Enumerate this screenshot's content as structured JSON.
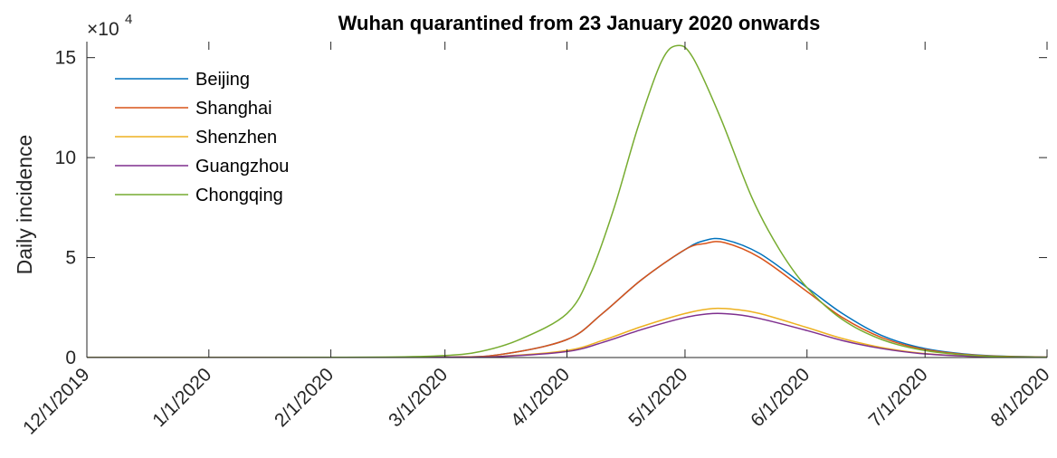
{
  "chart_data": {
    "type": "line",
    "title": "Wuhan quarantined from 23 January 2020 onwards",
    "xlabel": "",
    "ylabel": "Daily incidence",
    "y_multiplier_label": "×10",
    "y_multiplier_exponent": "4",
    "x_ticks": [
      "12/1/2019",
      "1/1/2020",
      "2/1/2020",
      "3/1/2020",
      "4/1/2020",
      "5/1/2020",
      "6/1/2020",
      "7/1/2020",
      "8/1/2020"
    ],
    "y_ticks": [
      "0",
      "5",
      "10",
      "15"
    ],
    "ylim": [
      0,
      15.8
    ],
    "y_unit_scale": 10000,
    "legend_position": "top-left",
    "grid": false,
    "series": [
      {
        "name": "Beijing",
        "color": "#0072BD",
        "x": [
          "2020-02-01",
          "2020-03-01",
          "2020-03-15",
          "2020-04-01",
          "2020-04-10",
          "2020-04-20",
          "2020-05-01",
          "2020-05-06",
          "2020-05-11",
          "2020-05-20",
          "2020-06-01",
          "2020-06-10",
          "2020-06-20",
          "2020-07-01",
          "2020-07-15",
          "2020-08-01"
        ],
        "y": [
          0,
          0.02,
          0.15,
          0.9,
          2.2,
          3.9,
          5.4,
          5.85,
          5.9,
          5.2,
          3.5,
          2.2,
          1.1,
          0.45,
          0.12,
          0.02
        ]
      },
      {
        "name": "Shanghai",
        "color": "#D95319",
        "x": [
          "2020-02-01",
          "2020-03-01",
          "2020-03-15",
          "2020-04-01",
          "2020-04-10",
          "2020-04-20",
          "2020-05-01",
          "2020-05-06",
          "2020-05-11",
          "2020-05-20",
          "2020-06-01",
          "2020-06-10",
          "2020-06-20",
          "2020-07-01",
          "2020-07-15",
          "2020-08-01"
        ],
        "y": [
          0,
          0.02,
          0.15,
          0.9,
          2.2,
          3.9,
          5.4,
          5.7,
          5.75,
          5.0,
          3.3,
          2.0,
          1.0,
          0.4,
          0.1,
          0.02
        ]
      },
      {
        "name": "Shenzhen",
        "color": "#EDB120",
        "x": [
          "2020-02-01",
          "2020-03-01",
          "2020-03-15",
          "2020-04-01",
          "2020-04-10",
          "2020-04-20",
          "2020-05-01",
          "2020-05-08",
          "2020-05-14",
          "2020-05-20",
          "2020-06-01",
          "2020-06-10",
          "2020-06-20",
          "2020-07-01",
          "2020-07-15",
          "2020-08-01"
        ],
        "y": [
          0,
          0.01,
          0.06,
          0.35,
          0.85,
          1.55,
          2.2,
          2.45,
          2.4,
          2.2,
          1.5,
          0.95,
          0.5,
          0.2,
          0.05,
          0.01
        ]
      },
      {
        "name": "Guangzhou",
        "color": "#7E2F8E",
        "x": [
          "2020-02-01",
          "2020-03-01",
          "2020-03-15",
          "2020-04-01",
          "2020-04-10",
          "2020-04-20",
          "2020-05-01",
          "2020-05-08",
          "2020-05-14",
          "2020-05-20",
          "2020-06-01",
          "2020-06-10",
          "2020-06-20",
          "2020-07-01",
          "2020-07-15",
          "2020-08-01"
        ],
        "y": [
          0,
          0.01,
          0.05,
          0.3,
          0.75,
          1.4,
          2.0,
          2.2,
          2.15,
          1.95,
          1.35,
          0.85,
          0.45,
          0.18,
          0.05,
          0.01
        ]
      },
      {
        "name": "Chongqing",
        "color": "#77AC30",
        "x": [
          "2020-01-15",
          "2020-02-15",
          "2020-03-01",
          "2020-03-10",
          "2020-03-20",
          "2020-04-01",
          "2020-04-07",
          "2020-04-13",
          "2020-04-19",
          "2020-04-25",
          "2020-04-29",
          "2020-05-03",
          "2020-05-10",
          "2020-05-18",
          "2020-05-25",
          "2020-06-01",
          "2020-06-10",
          "2020-06-20",
          "2020-07-01",
          "2020-07-15",
          "2020-08-01"
        ],
        "y": [
          0,
          0.02,
          0.1,
          0.3,
          0.9,
          2.2,
          4.2,
          7.5,
          11.5,
          14.8,
          15.6,
          15.0,
          12.0,
          8.0,
          5.4,
          3.5,
          1.9,
          0.9,
          0.35,
          0.08,
          0.01
        ]
      }
    ]
  }
}
